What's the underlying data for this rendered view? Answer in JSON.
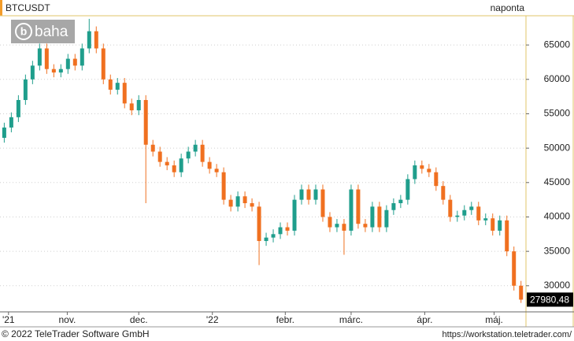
{
  "chart_data": {
    "type": "candlestick",
    "title": "BTCUSDT",
    "subtitle": "naponta",
    "watermark": "baha",
    "footer_left": "© 2022 TeleTrader Software GmbH",
    "footer_right": "https://workstation.teletrader.com/",
    "up_color": "#1f9e8c",
    "down_color": "#f07020",
    "open": [
      51500,
      53000,
      54500,
      57000,
      60000,
      62000,
      64500,
      61500,
      61000,
      61500,
      63000,
      62000,
      64500,
      67000,
      64500,
      60000,
      58500,
      59500,
      56500,
      55500,
      57000,
      50500,
      49500,
      48000,
      47500,
      46500,
      48500,
      49500,
      50500,
      48000,
      47000,
      46500,
      42500,
      41500,
      43000,
      42000,
      41500,
      36500,
      37000,
      37500,
      38500,
      38000,
      42500,
      44000,
      42500,
      44000,
      40000,
      38500,
      39000,
      38000,
      44000,
      39000,
      38500,
      41500,
      38500,
      41000,
      42000,
      42500,
      45500,
      47500,
      47000,
      46500,
      44500,
      42500,
      40000,
      40200,
      41000,
      41500,
      39500,
      39800,
      38000,
      39500,
      35000,
      30000
    ],
    "high": [
      53700,
      55200,
      57700,
      60700,
      62700,
      65200,
      65200,
      62200,
      62200,
      63700,
      63700,
      65200,
      68800,
      67700,
      65200,
      60700,
      60200,
      60200,
      57200,
      57700,
      57700,
      51200,
      50200,
      48700,
      48200,
      49200,
      50200,
      51200,
      51200,
      48700,
      47700,
      47200,
      43200,
      43700,
      43700,
      42700,
      42200,
      37700,
      38200,
      39200,
      39200,
      43200,
      44700,
      44700,
      44700,
      44700,
      40700,
      39700,
      39700,
      44700,
      44700,
      39700,
      42200,
      42200,
      41700,
      42700,
      43200,
      46200,
      48200,
      48200,
      47700,
      47200,
      45200,
      43200,
      40900,
      41700,
      42200,
      42200,
      40500,
      40500,
      40200,
      40200,
      35700,
      30700
    ],
    "low": [
      50800,
      52300,
      53800,
      56300,
      59300,
      61300,
      60800,
      60300,
      60300,
      60800,
      61300,
      61300,
      63800,
      63800,
      59300,
      57800,
      57800,
      55800,
      54800,
      54800,
      42000,
      48800,
      47300,
      46800,
      45800,
      45800,
      47800,
      48800,
      47300,
      46300,
      45800,
      41800,
      40800,
      40800,
      41300,
      40800,
      33000,
      35800,
      36300,
      36800,
      37300,
      37300,
      41800,
      41800,
      41800,
      39300,
      37800,
      37800,
      34500,
      37300,
      38300,
      37800,
      37800,
      37800,
      37800,
      40300,
      41300,
      41800,
      44800,
      46300,
      45800,
      43800,
      41800,
      39300,
      39300,
      39500,
      40300,
      38800,
      38800,
      37300,
      37300,
      34300,
      29300,
      27500
    ],
    "close": [
      53000,
      54500,
      57000,
      60000,
      62000,
      64500,
      61500,
      61000,
      61500,
      63000,
      62000,
      64500,
      67000,
      64500,
      60000,
      58500,
      59500,
      56500,
      55500,
      57000,
      50500,
      49500,
      48000,
      47500,
      46500,
      48500,
      49500,
      50500,
      48000,
      47000,
      46500,
      42500,
      41500,
      43000,
      42000,
      41500,
      36500,
      37000,
      37500,
      38500,
      38000,
      42500,
      44000,
      42500,
      44000,
      40000,
      38500,
      39000,
      38000,
      44000,
      39000,
      38500,
      41500,
      38500,
      41000,
      42000,
      42500,
      45500,
      47500,
      47000,
      46500,
      44500,
      42500,
      40000,
      40200,
      41000,
      41500,
      39500,
      39800,
      38000,
      39500,
      35000,
      30000,
      27980.48
    ],
    "last_price": {
      "value": 27980.48,
      "label": "27980,48"
    },
    "xlim": [
      -0.6,
      73.7
    ],
    "xticks": [
      {
        "value": 0.6,
        "label": "'21"
      },
      {
        "value": 8.9,
        "label": "nov."
      },
      {
        "value": 19,
        "label": "dec."
      },
      {
        "value": 29.4,
        "label": "'22"
      },
      {
        "value": 39.7,
        "label": "febr."
      },
      {
        "value": 49,
        "label": "márc."
      },
      {
        "value": 59.4,
        "label": "ápr."
      },
      {
        "value": 69.2,
        "label": "máj."
      }
    ],
    "ylim": [
      26200,
      69250
    ],
    "yticks": [
      30000,
      35000,
      40000,
      45000,
      50000,
      55000,
      60000,
      65000
    ],
    "grid": true
  }
}
